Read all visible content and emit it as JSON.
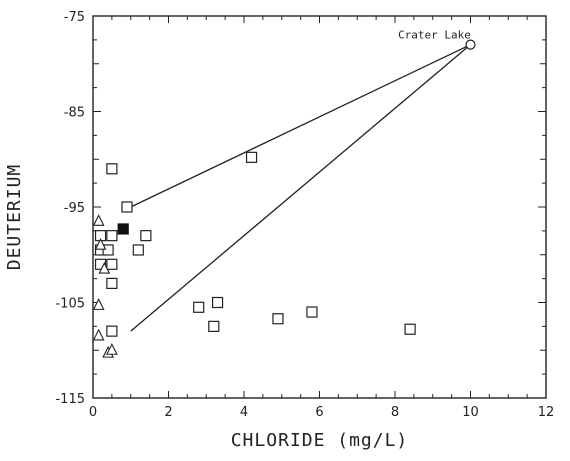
{
  "chart_data": {
    "type": "scatter",
    "title": "",
    "xlabel": "CHLORIDE (mg/L)",
    "ylabel": "DEUTERIUM",
    "xlim": [
      0,
      12
    ],
    "ylim": [
      -115,
      -75
    ],
    "x_ticks": [
      0,
      2,
      4,
      6,
      8,
      10,
      12
    ],
    "y_ticks": [
      -115,
      -105,
      -95,
      -85,
      -75
    ],
    "grid": false,
    "series": [
      {
        "marker": "open-square",
        "points": [
          [
            0.5,
            -91.0
          ],
          [
            0.9,
            -95.0
          ],
          [
            0.2,
            -98.0
          ],
          [
            0.5,
            -98.0
          ],
          [
            1.4,
            -98.0
          ],
          [
            0.2,
            -99.5
          ],
          [
            0.4,
            -99.5
          ],
          [
            1.2,
            -99.5
          ],
          [
            0.2,
            -101.0
          ],
          [
            0.5,
            -101.0
          ],
          [
            0.5,
            -103.0
          ],
          [
            4.2,
            -89.8
          ],
          [
            0.5,
            -108.0
          ],
          [
            2.8,
            -105.5
          ],
          [
            3.3,
            -105.0
          ],
          [
            3.2,
            -107.5
          ],
          [
            4.9,
            -106.7
          ],
          [
            5.8,
            -106.0
          ],
          [
            8.4,
            -107.8
          ]
        ]
      },
      {
        "marker": "open-triangle",
        "points": [
          [
            0.15,
            -96.5
          ],
          [
            0.2,
            -99.0
          ],
          [
            0.3,
            -101.5
          ],
          [
            0.15,
            -105.3
          ],
          [
            0.15,
            -108.5
          ],
          [
            0.4,
            -110.3
          ],
          [
            0.5,
            -110.0
          ]
        ]
      },
      {
        "marker": "filled-square",
        "points": [
          [
            0.8,
            -97.3
          ]
        ]
      },
      {
        "marker": "open-circle",
        "points": [
          [
            10.0,
            -78.0
          ]
        ]
      }
    ],
    "lines": [
      {
        "from": [
          1.0,
          -95.0
        ],
        "to": [
          10.0,
          -78.0
        ]
      },
      {
        "from": [
          1.0,
          -108.0
        ],
        "to": [
          10.0,
          -78.0
        ]
      }
    ],
    "annotations": [
      {
        "text": "Crater Lake",
        "x": 10.0,
        "y": -78.0
      }
    ]
  }
}
